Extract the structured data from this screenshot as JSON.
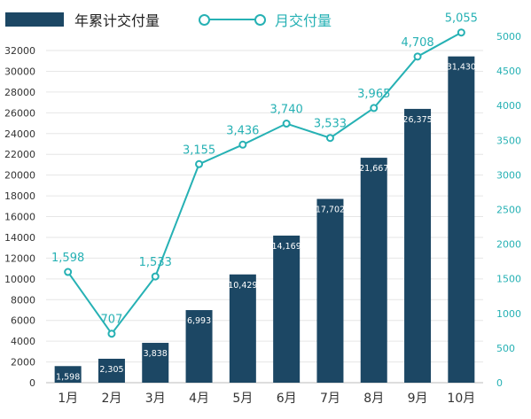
{
  "legend": {
    "bar_label": "年累计交付量",
    "line_label": "月交付量"
  },
  "colors": {
    "bar": "#1c4764",
    "line": "#26b1b4",
    "bar_label": "#ffffff",
    "line_label": "#26b1b4",
    "grid": "#e6e6e6",
    "left_axis_text": "#333333",
    "right_axis_text": "#26b1b4"
  },
  "chart_data": {
    "type": "bar",
    "categories": [
      "1月",
      "2月",
      "3月",
      "4月",
      "5月",
      "6月",
      "7月",
      "8月",
      "9月",
      "10月"
    ],
    "series": [
      {
        "name": "年累计交付量",
        "type": "bar",
        "axis": "left",
        "values": [
          1598,
          2305,
          3838,
          6993,
          10429,
          14169,
          17702,
          21667,
          26375,
          31430
        ],
        "value_labels": [
          "1,598",
          "2,305",
          "3,838",
          "6,993",
          "10,429",
          "14,169",
          "17,702",
          "21,667",
          "26,375",
          "31,430"
        ]
      },
      {
        "name": "月交付量",
        "type": "line",
        "axis": "right",
        "values": [
          1598,
          707,
          1533,
          3155,
          3436,
          3740,
          3533,
          3965,
          4708,
          5055
        ],
        "value_labels": [
          "1,598",
          "707",
          "1,533",
          "3,155",
          "3,436",
          "3,740",
          "3,533",
          "3,965",
          "4,708",
          "5,055"
        ]
      }
    ],
    "y_left": {
      "min": 0,
      "max": 32000,
      "ticks": [
        0,
        2000,
        4000,
        6000,
        8000,
        10000,
        12000,
        14000,
        16000,
        18000,
        20000,
        22000,
        24000,
        26000,
        28000,
        30000,
        32000
      ]
    },
    "y_right": {
      "min": 0,
      "max": 5000,
      "ticks": [
        0,
        500,
        1000,
        1500,
        2000,
        2500,
        3000,
        3500,
        4000,
        4500,
        5000
      ]
    },
    "grid": true,
    "legend_position": "top-left",
    "title": "",
    "xlabel": "",
    "ylabel": ""
  }
}
